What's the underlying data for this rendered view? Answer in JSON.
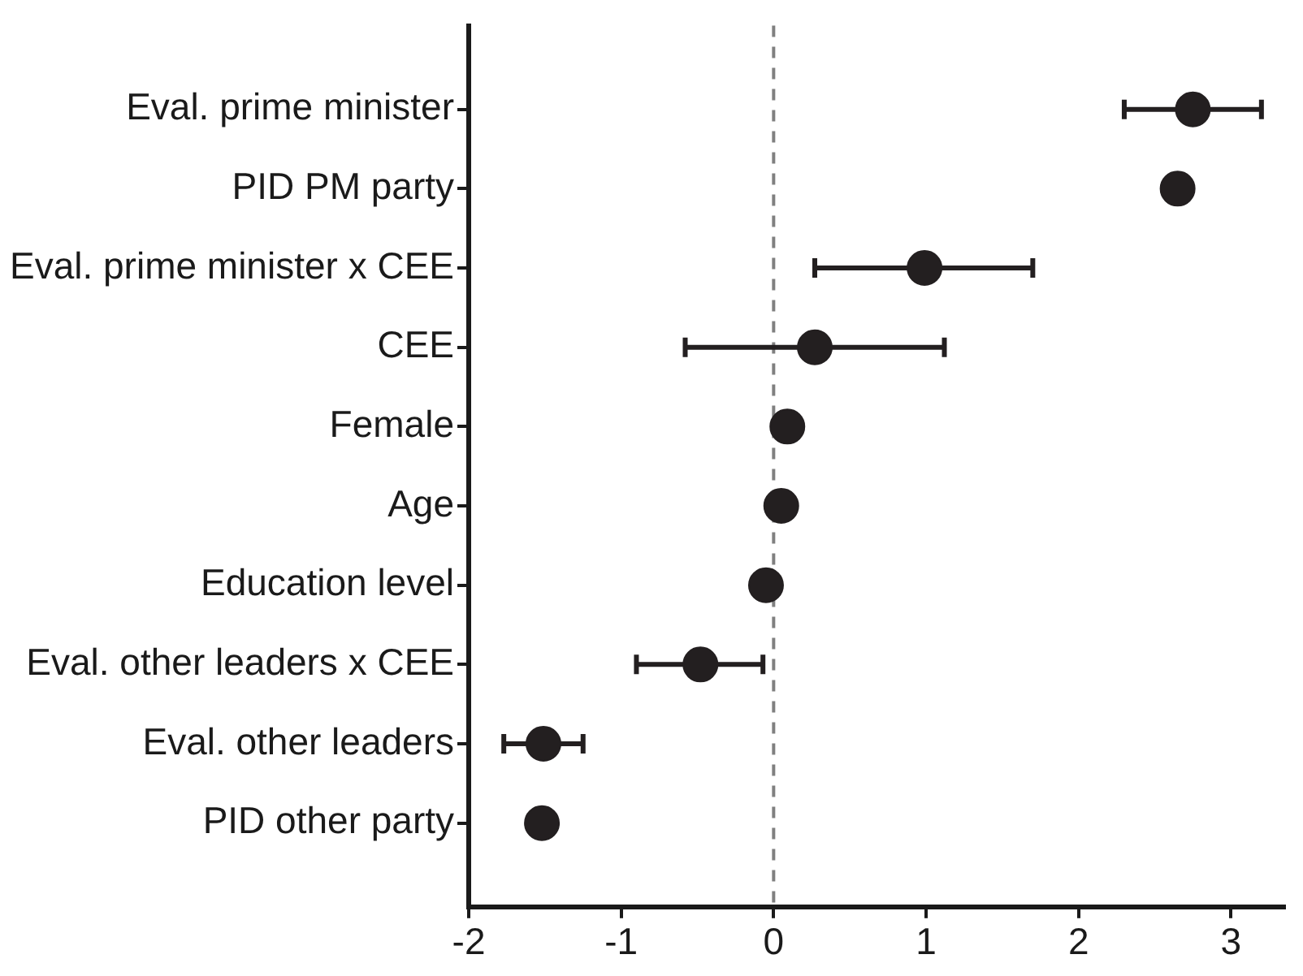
{
  "chart_data": {
    "type": "scatter",
    "orientation": "horizontal",
    "categories": [
      "Eval. prime minister",
      "PID PM party",
      "Eval. prime minister x CEE",
      "CEE",
      "Female",
      "Age",
      "Education level",
      "Eval. other leaders x CEE",
      "Eval. other leaders",
      "PID other party"
    ],
    "values": [
      2.75,
      2.65,
      0.99,
      0.27,
      0.09,
      0.05,
      -0.05,
      -0.48,
      -1.51,
      -1.52
    ],
    "errors": [
      [
        2.3,
        3.2
      ],
      null,
      [
        0.27,
        1.7
      ],
      [
        -0.58,
        1.12
      ],
      null,
      null,
      null,
      [
        -0.9,
        -0.07
      ],
      [
        -1.77,
        -1.25
      ],
      null
    ],
    "color": "#231f20",
    "marker": "circle",
    "xlim": [
      -2,
      3.35
    ],
    "xticks": [
      -2,
      -1,
      0,
      1,
      2,
      3
    ],
    "ref_lines": [
      {
        "axis": "x",
        "value": 0,
        "color": "#808080",
        "line_style": "dashed"
      }
    ],
    "grid": false,
    "legend": false
  }
}
